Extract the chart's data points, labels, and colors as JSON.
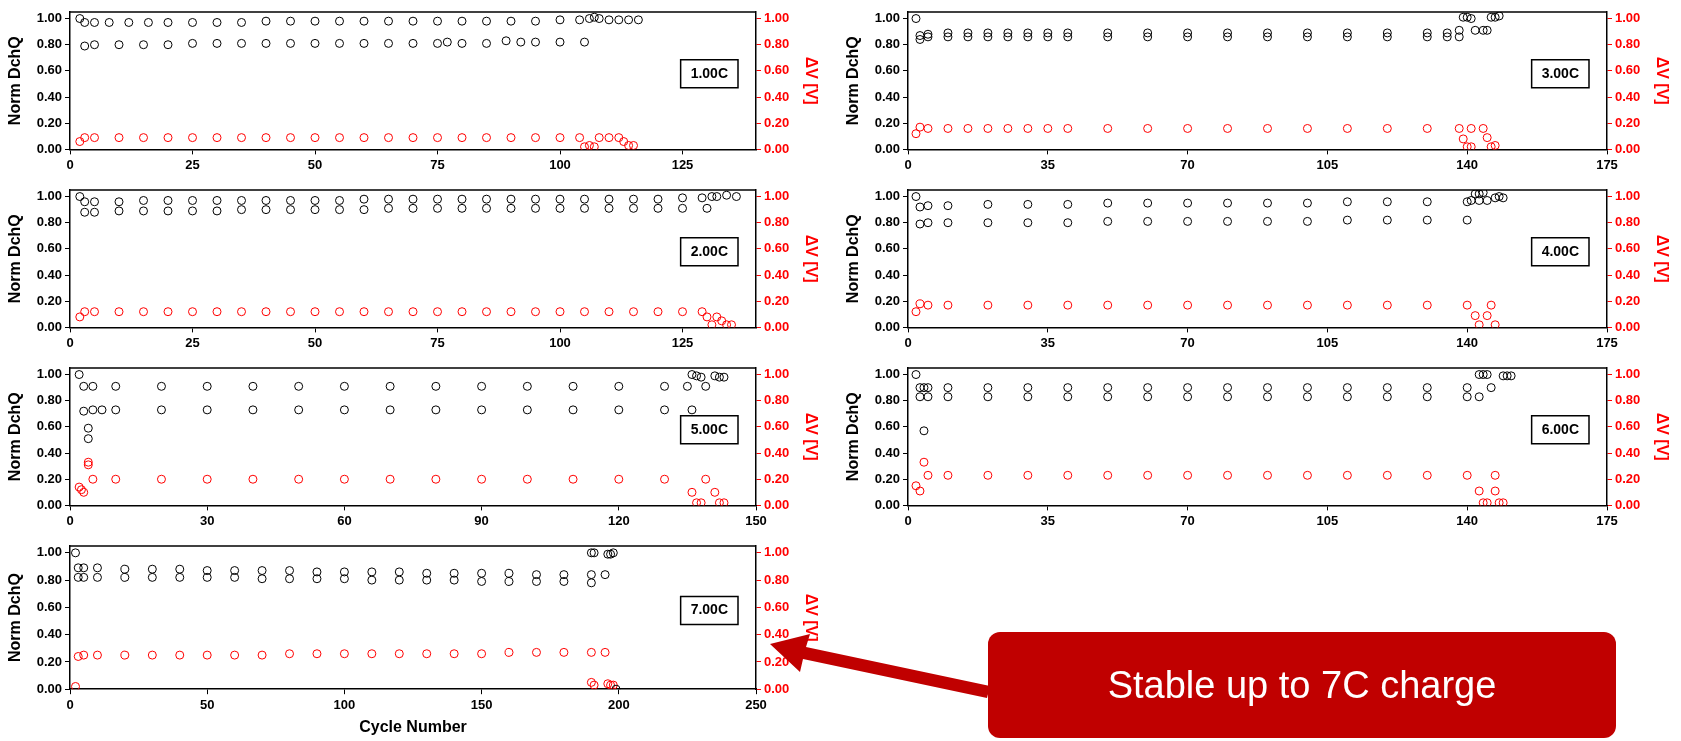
{
  "chart_data": [
    {
      "type": "scatter",
      "marker": "circle",
      "ylabel": "Norm DchQ",
      "y2label": "ΔV [V]",
      "annotations": [
        "1.00C"
      ],
      "xlim": [
        0,
        140
      ],
      "xticks": [
        0,
        25,
        50,
        75,
        100,
        125
      ],
      "ylim": [
        0,
        1.05
      ],
      "yticks": [
        {
          "value": 0,
          "label": "0.00"
        },
        {
          "value": 0.2,
          "label": "0.20"
        },
        {
          "value": 0.4,
          "label": "0.40"
        },
        {
          "value": 0.6,
          "label": "0.60"
        },
        {
          "value": 0.8,
          "label": "0.80"
        },
        {
          "value": 1,
          "label": "1.00"
        }
      ],
      "y2lim": [
        0,
        1.05
      ],
      "y2ticks": [
        {
          "value": 0,
          "label": "0.00"
        },
        {
          "value": 0.2,
          "label": "0.20"
        },
        {
          "value": 0.4,
          "label": "0.40"
        },
        {
          "value": 0.6,
          "label": "0.60"
        },
        {
          "value": 0.8,
          "label": "0.80"
        },
        {
          "value": 1,
          "label": "1.00"
        }
      ],
      "series": [
        {
          "color": "#000000",
          "x": [
            2,
            3,
            5,
            8,
            12,
            16,
            20,
            25,
            30,
            35,
            40,
            45,
            50,
            55,
            60,
            65,
            70,
            75,
            80,
            85,
            90,
            95,
            100,
            104,
            106,
            107,
            108,
            110,
            112,
            114,
            116
          ],
          "values": [
            1.0,
            0.97,
            0.97,
            0.97,
            0.97,
            0.97,
            0.97,
            0.97,
            0.97,
            0.97,
            0.98,
            0.98,
            0.98,
            0.98,
            0.98,
            0.98,
            0.98,
            0.98,
            0.98,
            0.98,
            0.98,
            0.98,
            0.99,
            0.99,
            1.0,
            1.01,
            1.0,
            0.99,
            0.99,
            0.99,
            0.99
          ]
        },
        {
          "color": "#000000",
          "x": [
            3,
            5,
            10,
            15,
            20,
            25,
            30,
            35,
            40,
            45,
            50,
            55,
            60,
            65,
            70,
            75,
            77,
            80,
            85,
            89,
            92,
            95,
            100,
            105
          ],
          "values": [
            0.79,
            0.8,
            0.8,
            0.8,
            0.8,
            0.81,
            0.81,
            0.81,
            0.81,
            0.81,
            0.81,
            0.81,
            0.81,
            0.81,
            0.81,
            0.81,
            0.82,
            0.81,
            0.81,
            0.83,
            0.82,
            0.82,
            0.82,
            0.82
          ]
        },
        {
          "color": "#ff0000",
          "axis": "y2",
          "x": [
            2,
            3,
            5,
            10,
            15,
            20,
            25,
            30,
            35,
            40,
            45,
            50,
            55,
            60,
            65,
            70,
            75,
            80,
            85,
            90,
            95,
            100,
            104,
            105,
            106,
            107,
            108,
            110,
            112,
            113,
            114,
            115
          ],
          "values": [
            0.06,
            0.09,
            0.09,
            0.09,
            0.09,
            0.09,
            0.09,
            0.09,
            0.09,
            0.09,
            0.09,
            0.09,
            0.09,
            0.09,
            0.09,
            0.09,
            0.09,
            0.09,
            0.09,
            0.09,
            0.09,
            0.09,
            0.09,
            0.02,
            0.03,
            0.02,
            0.09,
            0.09,
            0.09,
            0.06,
            0.03,
            0.03
          ]
        }
      ]
    },
    {
      "type": "scatter",
      "marker": "circle",
      "ylabel": "Norm DchQ",
      "y2label": "ΔV [V]",
      "annotations": [
        "3.00C"
      ],
      "xlim": [
        0,
        175
      ],
      "xticks": [
        0,
        35,
        70,
        105,
        140,
        175
      ],
      "ylim": [
        0,
        1.05
      ],
      "yticks": [
        {
          "value": 0,
          "label": "0.00"
        },
        {
          "value": 0.2,
          "label": "0.20"
        },
        {
          "value": 0.4,
          "label": "0.40"
        },
        {
          "value": 0.6,
          "label": "0.60"
        },
        {
          "value": 0.8,
          "label": "0.80"
        },
        {
          "value": 1,
          "label": "1.00"
        }
      ],
      "y2lim": [
        0,
        1.05
      ],
      "y2ticks": [
        {
          "value": 0,
          "label": "0.00"
        },
        {
          "value": 0.2,
          "label": "0.20"
        },
        {
          "value": 0.4,
          "label": "0.40"
        },
        {
          "value": 0.6,
          "label": "0.60"
        },
        {
          "value": 0.8,
          "label": "0.80"
        },
        {
          "value": 1,
          "label": "1.00"
        }
      ],
      "series": [
        {
          "color": "#000000",
          "x": [
            2,
            3,
            5,
            10,
            15,
            20,
            25,
            30,
            35,
            40,
            50,
            60,
            70,
            80,
            90,
            100,
            110,
            120,
            130,
            135,
            138,
            139,
            140,
            141,
            142,
            144,
            145,
            146,
            147,
            148
          ],
          "values": [
            1.0,
            0.87,
            0.88,
            0.89,
            0.89,
            0.89,
            0.89,
            0.89,
            0.89,
            0.89,
            0.89,
            0.89,
            0.89,
            0.89,
            0.89,
            0.89,
            0.89,
            0.89,
            0.89,
            0.89,
            0.91,
            1.01,
            1.01,
            1.0,
            0.91,
            0.91,
            0.91,
            1.01,
            1.01,
            1.02
          ]
        },
        {
          "color": "#000000",
          "x": [
            3,
            5,
            10,
            15,
            20,
            25,
            30,
            35,
            40,
            50,
            60,
            70,
            80,
            90,
            100,
            110,
            120,
            130,
            135,
            138
          ],
          "values": [
            0.84,
            0.86,
            0.86,
            0.86,
            0.86,
            0.86,
            0.86,
            0.86,
            0.86,
            0.86,
            0.86,
            0.86,
            0.86,
            0.86,
            0.86,
            0.86,
            0.86,
            0.86,
            0.86,
            0.86
          ]
        },
        {
          "color": "#ff0000",
          "axis": "y2",
          "x": [
            2,
            3,
            5,
            10,
            15,
            20,
            25,
            30,
            35,
            40,
            50,
            60,
            70,
            80,
            90,
            100,
            110,
            120,
            130,
            138,
            141,
            144,
            139,
            140,
            141,
            145,
            146,
            147
          ],
          "values": [
            0.12,
            0.17,
            0.16,
            0.16,
            0.16,
            0.16,
            0.16,
            0.16,
            0.16,
            0.16,
            0.16,
            0.16,
            0.16,
            0.16,
            0.16,
            0.16,
            0.16,
            0.16,
            0.16,
            0.16,
            0.16,
            0.16,
            0.08,
            0.02,
            0.02,
            0.09,
            0.02,
            0.03
          ]
        }
      ]
    },
    {
      "type": "scatter",
      "marker": "circle",
      "ylabel": "Norm DchQ",
      "y2label": "ΔV [V]",
      "annotations": [
        "2.00C"
      ],
      "xlim": [
        0,
        140
      ],
      "xticks": [
        0,
        25,
        50,
        75,
        100,
        125
      ],
      "ylim": [
        0,
        1.05
      ],
      "yticks": [
        {
          "value": 0,
          "label": "0.00"
        },
        {
          "value": 0.2,
          "label": "0.20"
        },
        {
          "value": 0.4,
          "label": "0.40"
        },
        {
          "value": 0.6,
          "label": "0.60"
        },
        {
          "value": 0.8,
          "label": "0.80"
        },
        {
          "value": 1,
          "label": "1.00"
        }
      ],
      "y2lim": [
        0,
        1.05
      ],
      "y2ticks": [
        {
          "value": 0,
          "label": "0.00"
        },
        {
          "value": 0.2,
          "label": "0.20"
        },
        {
          "value": 0.4,
          "label": "0.40"
        },
        {
          "value": 0.6,
          "label": "0.60"
        },
        {
          "value": 0.8,
          "label": "0.80"
        },
        {
          "value": 1,
          "label": "1.00"
        }
      ],
      "series": [
        {
          "color": "#000000",
          "x": [
            2,
            3,
            5,
            10,
            15,
            20,
            25,
            30,
            35,
            40,
            45,
            50,
            55,
            60,
            65,
            70,
            75,
            80,
            85,
            90,
            95,
            100,
            105,
            110,
            115,
            120,
            125,
            129,
            131,
            132,
            134,
            136
          ],
          "values": [
            1.0,
            0.96,
            0.96,
            0.96,
            0.97,
            0.97,
            0.97,
            0.97,
            0.97,
            0.97,
            0.97,
            0.97,
            0.97,
            0.98,
            0.98,
            0.98,
            0.98,
            0.98,
            0.98,
            0.98,
            0.98,
            0.98,
            0.98,
            0.98,
            0.98,
            0.98,
            0.99,
            0.99,
            1.0,
            1.0,
            1.01,
            1.0
          ]
        },
        {
          "color": "#000000",
          "x": [
            3,
            5,
            10,
            15,
            20,
            25,
            30,
            35,
            40,
            45,
            50,
            55,
            60,
            65,
            70,
            75,
            80,
            85,
            90,
            95,
            100,
            105,
            110,
            115,
            120,
            125,
            130
          ],
          "values": [
            0.88,
            0.88,
            0.89,
            0.89,
            0.89,
            0.89,
            0.89,
            0.9,
            0.9,
            0.9,
            0.9,
            0.9,
            0.9,
            0.91,
            0.91,
            0.91,
            0.91,
            0.91,
            0.91,
            0.91,
            0.91,
            0.91,
            0.91,
            0.91,
            0.91,
            0.91,
            0.91
          ]
        },
        {
          "color": "#ff0000",
          "axis": "y2",
          "x": [
            2,
            3,
            5,
            10,
            15,
            20,
            25,
            30,
            35,
            40,
            45,
            50,
            55,
            60,
            65,
            70,
            75,
            80,
            85,
            90,
            95,
            100,
            105,
            110,
            115,
            120,
            125,
            129,
            130,
            131,
            132,
            133,
            134,
            135
          ],
          "values": [
            0.08,
            0.12,
            0.12,
            0.12,
            0.12,
            0.12,
            0.12,
            0.12,
            0.12,
            0.12,
            0.12,
            0.12,
            0.12,
            0.12,
            0.12,
            0.12,
            0.12,
            0.12,
            0.12,
            0.12,
            0.12,
            0.12,
            0.12,
            0.12,
            0.12,
            0.12,
            0.12,
            0.12,
            0.08,
            0.02,
            0.08,
            0.05,
            0.02,
            0.02
          ]
        }
      ]
    },
    {
      "type": "scatter",
      "marker": "circle",
      "ylabel": "Norm DchQ",
      "y2label": "ΔV [V]",
      "annotations": [
        "4.00C"
      ],
      "xlim": [
        0,
        175
      ],
      "xticks": [
        0,
        35,
        70,
        105,
        140,
        175
      ],
      "ylim": [
        0,
        1.05
      ],
      "yticks": [
        {
          "value": 0,
          "label": "0.00"
        },
        {
          "value": 0.2,
          "label": "0.20"
        },
        {
          "value": 0.4,
          "label": "0.40"
        },
        {
          "value": 0.6,
          "label": "0.60"
        },
        {
          "value": 0.8,
          "label": "0.80"
        },
        {
          "value": 1,
          "label": "1.00"
        }
      ],
      "y2lim": [
        0,
        1.05
      ],
      "y2ticks": [
        {
          "value": 0,
          "label": "0.00"
        },
        {
          "value": 0.2,
          "label": "0.20"
        },
        {
          "value": 0.4,
          "label": "0.40"
        },
        {
          "value": 0.6,
          "label": "0.60"
        },
        {
          "value": 0.8,
          "label": "0.80"
        },
        {
          "value": 1,
          "label": "1.00"
        }
      ],
      "series": [
        {
          "color": "#000000",
          "x": [
            2,
            3,
            5,
            10,
            20,
            30,
            40,
            50,
            60,
            70,
            80,
            90,
            100,
            110,
            120,
            130,
            140,
            141,
            143,
            145,
            142,
            143,
            144,
            147,
            148,
            149
          ],
          "values": [
            1.0,
            0.92,
            0.93,
            0.93,
            0.94,
            0.94,
            0.94,
            0.95,
            0.95,
            0.95,
            0.95,
            0.95,
            0.95,
            0.96,
            0.96,
            0.96,
            0.96,
            0.97,
            0.97,
            0.97,
            1.02,
            1.02,
            1.03,
            0.99,
            1.0,
            0.99
          ]
        },
        {
          "color": "#000000",
          "x": [
            3,
            5,
            10,
            20,
            30,
            40,
            50,
            60,
            70,
            80,
            90,
            100,
            110,
            120,
            130,
            140
          ],
          "values": [
            0.79,
            0.8,
            0.8,
            0.8,
            0.8,
            0.8,
            0.81,
            0.81,
            0.81,
            0.81,
            0.81,
            0.81,
            0.82,
            0.82,
            0.82,
            0.82
          ]
        },
        {
          "color": "#ff0000",
          "axis": "y2",
          "x": [
            2,
            3,
            5,
            10,
            20,
            30,
            40,
            50,
            60,
            70,
            80,
            90,
            100,
            110,
            120,
            130,
            140,
            146,
            142,
            143,
            145,
            147
          ],
          "values": [
            0.12,
            0.18,
            0.17,
            0.17,
            0.17,
            0.17,
            0.17,
            0.17,
            0.17,
            0.17,
            0.17,
            0.17,
            0.17,
            0.17,
            0.17,
            0.17,
            0.17,
            0.17,
            0.09,
            0.02,
            0.09,
            0.02
          ]
        }
      ]
    },
    {
      "type": "scatter",
      "marker": "circle",
      "ylabel": "Norm DchQ",
      "y2label": "ΔV [V]",
      "annotations": [
        "5.00C"
      ],
      "xlim": [
        0,
        150
      ],
      "xticks": [
        0,
        30,
        60,
        90,
        120,
        150
      ],
      "ylim": [
        0,
        1.05
      ],
      "yticks": [
        {
          "value": 0,
          "label": "0.00"
        },
        {
          "value": 0.2,
          "label": "0.20"
        },
        {
          "value": 0.4,
          "label": "0.40"
        },
        {
          "value": 0.6,
          "label": "0.60"
        },
        {
          "value": 0.8,
          "label": "0.80"
        },
        {
          "value": 1,
          "label": "1.00"
        }
      ],
      "y2lim": [
        0,
        1.05
      ],
      "y2ticks": [
        {
          "value": 0,
          "label": "0.00"
        },
        {
          "value": 0.2,
          "label": "0.20"
        },
        {
          "value": 0.4,
          "label": "0.40"
        },
        {
          "value": 0.6,
          "label": "0.60"
        },
        {
          "value": 0.8,
          "label": "0.80"
        },
        {
          "value": 1,
          "label": "1.00"
        }
      ],
      "series": [
        {
          "color": "#000000",
          "x": [
            2,
            3,
            5,
            10,
            20,
            30,
            40,
            50,
            60,
            70,
            80,
            90,
            100,
            110,
            120,
            130,
            135,
            139,
            136,
            137,
            138,
            141,
            142,
            143
          ],
          "values": [
            1.0,
            0.91,
            0.91,
            0.91,
            0.91,
            0.91,
            0.91,
            0.91,
            0.91,
            0.91,
            0.91,
            0.91,
            0.91,
            0.91,
            0.91,
            0.91,
            0.91,
            0.91,
            1.0,
            0.99,
            0.98,
            0.99,
            0.98,
            0.98
          ]
        },
        {
          "color": "#000000",
          "x": [
            3,
            4,
            4,
            5,
            7,
            10,
            20,
            30,
            40,
            50,
            60,
            70,
            80,
            90,
            100,
            110,
            120,
            130,
            136
          ],
          "values": [
            0.72,
            0.51,
            0.59,
            0.73,
            0.73,
            0.73,
            0.73,
            0.73,
            0.73,
            0.73,
            0.73,
            0.73,
            0.73,
            0.73,
            0.73,
            0.73,
            0.73,
            0.73,
            0.73
          ]
        },
        {
          "color": "#ff0000",
          "axis": "y2",
          "x": [
            2,
            2.5,
            3,
            4,
            4,
            5,
            10,
            20,
            30,
            40,
            50,
            60,
            70,
            80,
            90,
            100,
            110,
            120,
            130,
            139,
            136,
            137,
            138,
            141,
            142,
            143
          ],
          "values": [
            0.14,
            0.12,
            0.1,
            0.33,
            0.31,
            0.2,
            0.2,
            0.2,
            0.2,
            0.2,
            0.2,
            0.2,
            0.2,
            0.2,
            0.2,
            0.2,
            0.2,
            0.2,
            0.2,
            0.2,
            0.1,
            0.02,
            0.02,
            0.1,
            0.02,
            0.02
          ]
        }
      ]
    },
    {
      "type": "scatter",
      "marker": "circle",
      "ylabel": "Norm DchQ",
      "y2label": "ΔV [V]",
      "annotations": [
        "6.00C"
      ],
      "xlim": [
        0,
        175
      ],
      "xticks": [
        0,
        35,
        70,
        105,
        140,
        175
      ],
      "ylim": [
        0,
        1.05
      ],
      "yticks": [
        {
          "value": 0,
          "label": "0.00"
        },
        {
          "value": 0.2,
          "label": "0.20"
        },
        {
          "value": 0.4,
          "label": "0.40"
        },
        {
          "value": 0.6,
          "label": "0.60"
        },
        {
          "value": 0.8,
          "label": "0.80"
        },
        {
          "value": 1,
          "label": "1.00"
        }
      ],
      "y2lim": [
        0,
        1.05
      ],
      "y2ticks": [
        {
          "value": 0,
          "label": "0.00"
        },
        {
          "value": 0.2,
          "label": "0.20"
        },
        {
          "value": 0.4,
          "label": "0.40"
        },
        {
          "value": 0.6,
          "label": "0.60"
        },
        {
          "value": 0.8,
          "label": "0.80"
        },
        {
          "value": 1,
          "label": "1.00"
        }
      ],
      "series": [
        {
          "color": "#000000",
          "x": [
            2,
            3,
            4,
            5,
            10,
            20,
            30,
            40,
            50,
            60,
            70,
            80,
            90,
            100,
            110,
            120,
            130,
            140,
            146,
            143,
            144,
            145,
            149,
            150,
            151
          ],
          "values": [
            1.0,
            0.9,
            0.9,
            0.9,
            0.9,
            0.9,
            0.9,
            0.9,
            0.9,
            0.9,
            0.9,
            0.9,
            0.9,
            0.9,
            0.9,
            0.9,
            0.9,
            0.9,
            0.9,
            1.0,
            1.0,
            1.0,
            0.99,
            0.99,
            0.99
          ]
        },
        {
          "color": "#000000",
          "x": [
            3,
            4,
            5,
            10,
            20,
            30,
            40,
            50,
            60,
            70,
            80,
            90,
            100,
            110,
            120,
            130,
            140,
            143
          ],
          "values": [
            0.83,
            0.57,
            0.83,
            0.83,
            0.83,
            0.83,
            0.83,
            0.83,
            0.83,
            0.83,
            0.83,
            0.83,
            0.83,
            0.83,
            0.83,
            0.83,
            0.83,
            0.83
          ]
        },
        {
          "color": "#ff0000",
          "axis": "y2",
          "x": [
            2,
            3,
            4,
            5,
            10,
            20,
            30,
            40,
            50,
            60,
            70,
            80,
            90,
            100,
            110,
            120,
            130,
            140,
            147,
            143,
            144,
            145,
            147,
            148,
            149
          ],
          "values": [
            0.15,
            0.11,
            0.33,
            0.23,
            0.23,
            0.23,
            0.23,
            0.23,
            0.23,
            0.23,
            0.23,
            0.23,
            0.23,
            0.23,
            0.23,
            0.23,
            0.23,
            0.23,
            0.23,
            0.11,
            0.02,
            0.02,
            0.11,
            0.02,
            0.02
          ]
        }
      ]
    },
    {
      "type": "scatter",
      "marker": "circle",
      "xlabel": "Cycle Number",
      "ylabel": "Norm DchQ",
      "y2label": "ΔV [V]",
      "annotations": [
        "7.00C",
        "Stable up to 7C charge"
      ],
      "xlim": [
        0,
        250
      ],
      "xticks": [
        0,
        50,
        100,
        150,
        200,
        250
      ],
      "ylim": [
        0,
        1.05
      ],
      "yticks": [
        {
          "value": 0,
          "label": "0.00"
        },
        {
          "value": 0.2,
          "label": "0.20"
        },
        {
          "value": 0.4,
          "label": "0.40"
        },
        {
          "value": 0.6,
          "label": "0.60"
        },
        {
          "value": 0.8,
          "label": "0.80"
        },
        {
          "value": 1,
          "label": "1.00"
        }
      ],
      "y2lim": [
        0,
        1.05
      ],
      "y2ticks": [
        {
          "value": 0,
          "label": "0.00"
        },
        {
          "value": 0.2,
          "label": "0.20"
        },
        {
          "value": 0.4,
          "label": "0.40"
        },
        {
          "value": 0.6,
          "label": "0.60"
        },
        {
          "value": 0.8,
          "label": "0.80"
        },
        {
          "value": 1,
          "label": "1.00"
        }
      ],
      "series": [
        {
          "color": "#000000",
          "x": [
            2,
            3,
            5,
            10,
            20,
            30,
            40,
            50,
            60,
            70,
            80,
            90,
            100,
            110,
            120,
            130,
            140,
            150,
            160,
            170,
            180,
            190,
            195,
            190,
            191,
            196,
            197,
            198
          ],
          "values": [
            1.0,
            0.89,
            0.89,
            0.89,
            0.88,
            0.88,
            0.88,
            0.87,
            0.87,
            0.87,
            0.87,
            0.86,
            0.86,
            0.86,
            0.86,
            0.85,
            0.85,
            0.85,
            0.85,
            0.84,
            0.84,
            0.84,
            0.84,
            1.0,
            1.0,
            0.99,
            0.99,
            1.0
          ]
        },
        {
          "color": "#000000",
          "x": [
            3,
            5,
            10,
            20,
            30,
            40,
            50,
            60,
            70,
            80,
            90,
            100,
            110,
            120,
            130,
            140,
            150,
            160,
            170,
            180,
            190,
            199
          ],
          "values": [
            0.82,
            0.82,
            0.82,
            0.82,
            0.82,
            0.82,
            0.82,
            0.82,
            0.81,
            0.81,
            0.81,
            0.81,
            0.8,
            0.8,
            0.8,
            0.8,
            0.79,
            0.79,
            0.79,
            0.79,
            0.78,
            0.0
          ]
        },
        {
          "color": "#ff0000",
          "axis": "y2",
          "x": [
            2,
            3,
            5,
            10,
            20,
            30,
            40,
            50,
            60,
            70,
            80,
            90,
            100,
            110,
            120,
            130,
            140,
            150,
            160,
            170,
            180,
            190,
            195,
            190,
            191,
            196,
            197,
            198
          ],
          "values": [
            0.02,
            0.24,
            0.25,
            0.25,
            0.25,
            0.25,
            0.25,
            0.25,
            0.25,
            0.25,
            0.26,
            0.26,
            0.26,
            0.26,
            0.26,
            0.26,
            0.26,
            0.26,
            0.27,
            0.27,
            0.27,
            0.27,
            0.27,
            0.05,
            0.03,
            0.04,
            0.03,
            0.03
          ]
        }
      ]
    }
  ]
}
